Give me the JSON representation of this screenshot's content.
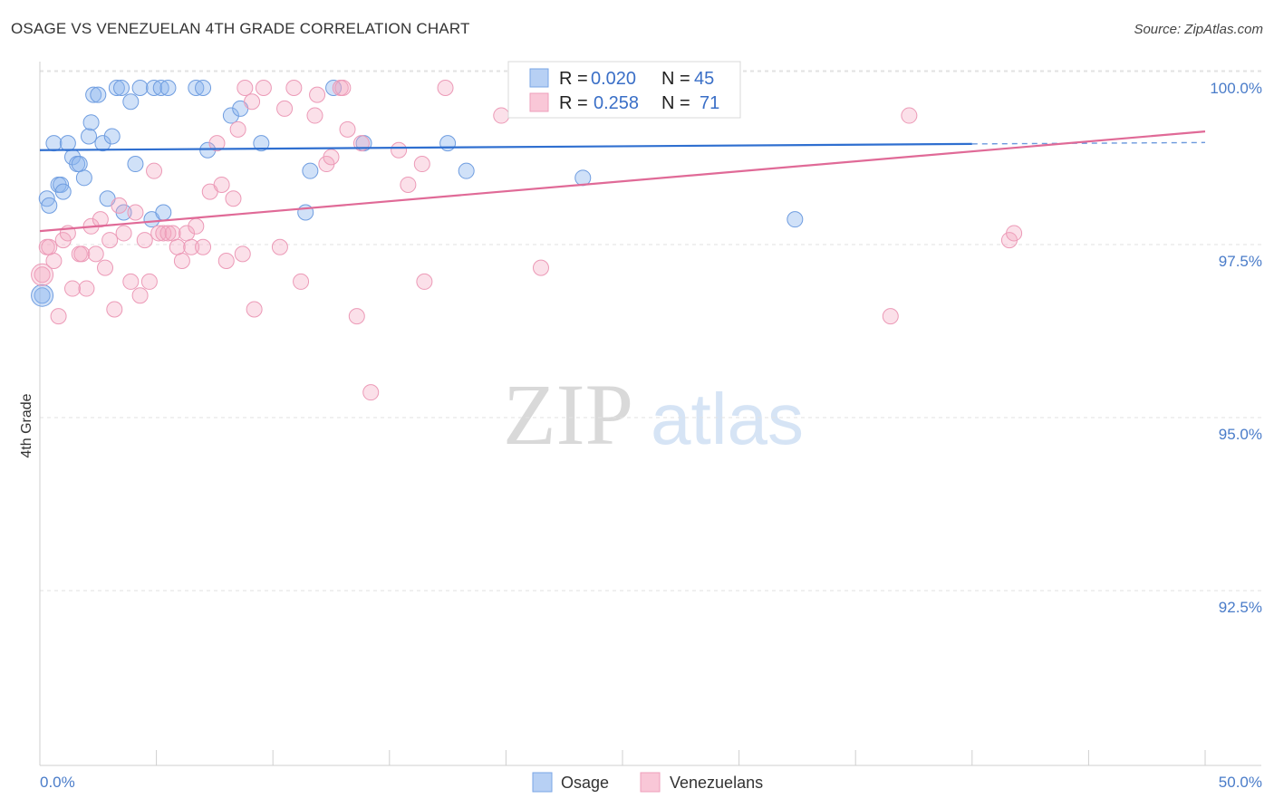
{
  "header": {
    "title": "OSAGE VS VENEZUELAN 4TH GRADE CORRELATION CHART",
    "source": "Source: ZipAtlas.com"
  },
  "watermark": {
    "zip": "ZIP",
    "atlas": "atlas"
  },
  "colors": {
    "osage": "#8ab4ee",
    "osage_line": "#2f6fd0",
    "venezuelans": "#f4a7c0",
    "venezuelans_line": "#e06a97",
    "axis_label": "#4a7cc9"
  },
  "legend_box": {
    "rows": [
      {
        "r_label": "R =",
        "r_value": "0.020",
        "n_label": "N =",
        "n_value": "45"
      },
      {
        "r_label": "R =",
        "r_value": "0.258",
        "n_label": "N =",
        "n_value": "71"
      }
    ]
  },
  "bottom_legend": [
    "Osage",
    "Venezuelans"
  ],
  "chart_data": {
    "type": "scatter",
    "title": "OSAGE VS VENEZUELAN 4TH GRADE CORRELATION CHART",
    "xlabel": "",
    "ylabel": "4th Grade",
    "xlim": [
      0,
      50
    ],
    "ylim": [
      90.0,
      100.2
    ],
    "x_tick_labels": [
      "0.0%",
      "50.0%"
    ],
    "y_tick_values": [
      100.0,
      97.5,
      95.0,
      92.5
    ],
    "y_tick_labels": [
      "100.0%",
      "97.5%",
      "95.0%",
      "92.5%"
    ],
    "grid": true,
    "series": [
      {
        "name": "Osage",
        "R": 0.02,
        "N": 45,
        "trend": {
          "x": [
            0,
            40,
            50
          ],
          "y": [
            99.1,
            99.19,
            99.21
          ],
          "solid_until": 40
        },
        "points": [
          [
            0.1,
            97.0
          ],
          [
            0.3,
            98.4
          ],
          [
            0.4,
            98.3
          ],
          [
            0.6,
            99.2
          ],
          [
            0.8,
            98.6
          ],
          [
            0.9,
            98.6
          ],
          [
            1.0,
            98.5
          ],
          [
            1.2,
            99.2
          ],
          [
            1.4,
            99.0
          ],
          [
            1.6,
            98.9
          ],
          [
            1.7,
            98.9
          ],
          [
            1.9,
            98.7
          ],
          [
            2.1,
            99.3
          ],
          [
            2.2,
            99.5
          ],
          [
            2.3,
            99.9
          ],
          [
            2.5,
            99.9
          ],
          [
            2.7,
            99.2
          ],
          [
            2.9,
            98.4
          ],
          [
            3.1,
            99.3
          ],
          [
            3.3,
            100.0
          ],
          [
            3.5,
            100.0
          ],
          [
            3.6,
            98.2
          ],
          [
            3.9,
            99.8
          ],
          [
            4.1,
            98.9
          ],
          [
            4.3,
            100.0
          ],
          [
            4.8,
            98.1
          ],
          [
            4.9,
            100.0
          ],
          [
            5.2,
            100.0
          ],
          [
            5.3,
            98.2
          ],
          [
            5.5,
            100.0
          ],
          [
            6.7,
            100.0
          ],
          [
            7.0,
            100.0
          ],
          [
            7.2,
            99.1
          ],
          [
            8.2,
            99.6
          ],
          [
            8.6,
            99.7
          ],
          [
            9.5,
            99.2
          ],
          [
            11.4,
            98.2
          ],
          [
            11.6,
            98.8
          ],
          [
            12.6,
            100.0
          ],
          [
            13.9,
            99.2
          ],
          [
            17.5,
            99.2
          ],
          [
            18.3,
            98.8
          ],
          [
            22.7,
            100.0
          ],
          [
            23.3,
            98.7
          ],
          [
            32.4,
            98.1
          ]
        ]
      },
      {
        "name": "Venezuelans",
        "R": 0.258,
        "N": 71,
        "trend": {
          "x": [
            0,
            50
          ],
          "y": [
            97.93,
            99.37
          ]
        },
        "points": [
          [
            0.1,
            97.3
          ],
          [
            0.3,
            97.7
          ],
          [
            0.6,
            97.5
          ],
          [
            0.8,
            96.7
          ],
          [
            1.0,
            97.8
          ],
          [
            1.2,
            97.9
          ],
          [
            1.4,
            97.1
          ],
          [
            1.7,
            97.6
          ],
          [
            1.8,
            97.6
          ],
          [
            2.0,
            97.1
          ],
          [
            2.2,
            98.0
          ],
          [
            2.4,
            97.6
          ],
          [
            2.6,
            98.1
          ],
          [
            2.8,
            97.4
          ],
          [
            3.0,
            97.8
          ],
          [
            3.2,
            96.8
          ],
          [
            3.4,
            98.3
          ],
          [
            3.6,
            97.9
          ],
          [
            3.9,
            97.2
          ],
          [
            4.1,
            98.2
          ],
          [
            4.3,
            97.0
          ],
          [
            4.5,
            97.8
          ],
          [
            4.7,
            97.2
          ],
          [
            4.9,
            98.8
          ],
          [
            5.1,
            97.9
          ],
          [
            5.3,
            97.9
          ],
          [
            5.5,
            97.9
          ],
          [
            5.7,
            97.9
          ],
          [
            5.9,
            97.7
          ],
          [
            6.1,
            97.5
          ],
          [
            6.3,
            97.9
          ],
          [
            6.5,
            97.7
          ],
          [
            6.7,
            98.0
          ],
          [
            7.0,
            97.7
          ],
          [
            7.3,
            98.5
          ],
          [
            7.6,
            99.2
          ],
          [
            7.8,
            98.6
          ],
          [
            8.0,
            97.5
          ],
          [
            8.3,
            98.4
          ],
          [
            8.5,
            99.4
          ],
          [
            8.7,
            97.6
          ],
          [
            8.8,
            100.0
          ],
          [
            9.1,
            99.8
          ],
          [
            9.6,
            100.0
          ],
          [
            9.2,
            96.8
          ],
          [
            10.3,
            97.7
          ],
          [
            10.5,
            99.7
          ],
          [
            10.9,
            100.0
          ],
          [
            11.2,
            97.2
          ],
          [
            11.8,
            99.6
          ],
          [
            11.9,
            99.9
          ],
          [
            12.3,
            98.9
          ],
          [
            12.5,
            99.0
          ],
          [
            12.9,
            100.0
          ],
          [
            13.0,
            100.0
          ],
          [
            13.2,
            99.4
          ],
          [
            13.6,
            96.7
          ],
          [
            13.8,
            99.2
          ],
          [
            14.2,
            95.6
          ],
          [
            15.4,
            99.1
          ],
          [
            15.8,
            98.6
          ],
          [
            16.4,
            98.9
          ],
          [
            16.5,
            97.2
          ],
          [
            17.4,
            100.0
          ],
          [
            19.8,
            99.6
          ],
          [
            21.5,
            97.4
          ],
          [
            36.5,
            96.7
          ],
          [
            37.3,
            99.6
          ],
          [
            41.6,
            97.8
          ],
          [
            41.8,
            97.9
          ],
          [
            0.4,
            97.7
          ]
        ]
      }
    ]
  }
}
